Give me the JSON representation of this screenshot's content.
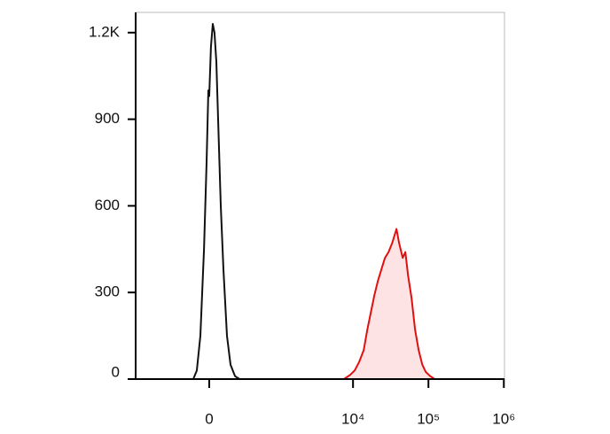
{
  "chart_data": {
    "type": "histogram",
    "xscale": "biexponential",
    "linear_width": 248,
    "xlim": [
      -1160,
      1020000
    ],
    "ylim": [
      0,
      1270
    ],
    "xticks": [
      0,
      {
        "value": 10000,
        "label": "10⁴"
      },
      {
        "value": 100000,
        "label": "10⁵"
      },
      {
        "value": 1000000,
        "label": "10⁶"
      }
    ],
    "yticks": [
      0,
      300,
      600,
      900,
      {
        "value": 1200,
        "label": "1.2K"
      }
    ],
    "series": [
      {
        "color": "#111111",
        "fill": "none",
        "x": [
          -126,
          -96,
          -68,
          -40,
          -20,
          -7,
          0,
          13,
          27,
          40,
          54,
          68,
          89,
          111,
          141,
          173,
          216,
          263
        ],
        "values": [
          0,
          30,
          150,
          450,
          750,
          1000,
          980,
          1150,
          1230,
          1200,
          1100,
          900,
          600,
          380,
          150,
          50,
          10,
          0
        ]
      },
      {
        "color": "#e01010",
        "fill": "#fde3e3",
        "x": [
          7600,
          9220,
          10550,
          12090,
          13840,
          15440,
          17200,
          19170,
          21370,
          23800,
          26540,
          29560,
          32960,
          37730,
          40920,
          45630,
          49480,
          53690,
          59770,
          66590,
          74280,
          82830,
          92260,
          105650,
          121000
        ],
        "values": [
          0,
          15,
          30,
          60,
          100,
          170,
          230,
          290,
          340,
          380,
          420,
          440,
          470,
          520,
          470,
          420,
          440,
          360,
          280,
          170,
          100,
          50,
          25,
          10,
          0
        ]
      }
    ]
  }
}
